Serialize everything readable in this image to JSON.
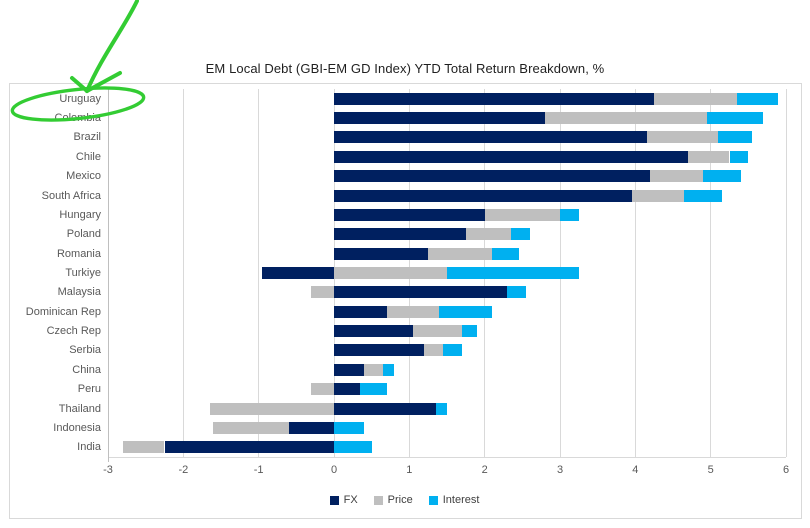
{
  "chart_data": {
    "type": "bar",
    "orientation": "horizontal",
    "stacked": true,
    "title": "EM Local Debt (GBI-EM GD Index) YTD Total Return Breakdown, %",
    "categories": [
      "Uruguay",
      "Colombia",
      "Brazil",
      "Chile",
      "Mexico",
      "South Africa",
      "Hungary",
      "Poland",
      "Romania",
      "Turkiye",
      "Malaysia",
      "Dominican Rep",
      "Czech Rep",
      "Serbia",
      "China",
      "Peru",
      "Thailand",
      "Indonesia",
      "India"
    ],
    "series": [
      {
        "name": "FX",
        "color": "#002060",
        "values": [
          4.25,
          2.8,
          4.15,
          4.7,
          4.2,
          3.95,
          2.0,
          1.75,
          1.25,
          -0.95,
          2.3,
          0.7,
          1.05,
          1.2,
          0.4,
          0.35,
          1.35,
          -0.6,
          -2.25
        ]
      },
      {
        "name": "Price",
        "color": "#bfbfbf",
        "values": [
          1.1,
          2.15,
          0.95,
          0.55,
          0.7,
          0.7,
          1.0,
          0.6,
          0.85,
          1.5,
          -0.3,
          0.7,
          0.65,
          0.25,
          0.25,
          -0.3,
          -1.65,
          -1.0,
          -0.55
        ]
      },
      {
        "name": "Interest",
        "color": "#00b0f0",
        "values": [
          0.55,
          0.75,
          0.45,
          0.25,
          0.5,
          0.5,
          0.25,
          0.25,
          0.35,
          1.75,
          0.25,
          0.7,
          0.2,
          0.25,
          0.15,
          0.35,
          0.15,
          0.4,
          0.5
        ]
      }
    ],
    "xlim": [
      -3,
      6
    ],
    "x_ticks": [
      "-3",
      "-2",
      "-1",
      "0",
      "1",
      "2",
      "3",
      "4",
      "5",
      "6"
    ],
    "grid": "vertical-only",
    "legend_position": "bottom"
  },
  "annotation": {
    "shape": "hand-drawn-circle-with-arrow",
    "target_label": "Uruguay",
    "color": "#33cc33"
  }
}
